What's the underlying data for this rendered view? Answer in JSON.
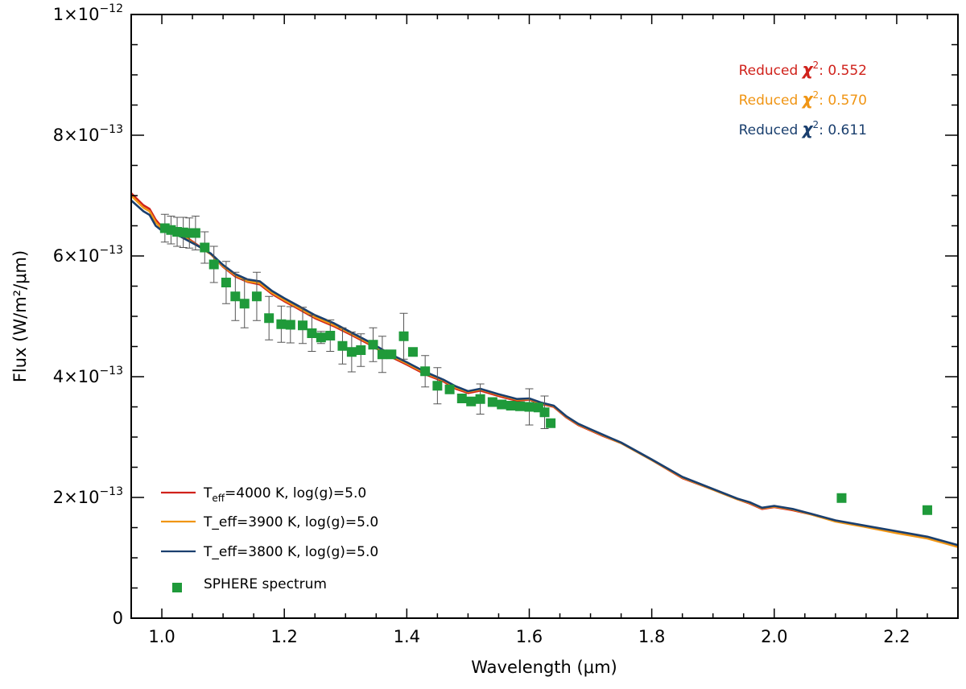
{
  "chart_data": {
    "type": "line",
    "title": "",
    "xlabel": "Wavelength (μm)",
    "ylabel": "Flux (W/m²/μm)",
    "xlim": [
      0.95,
      2.3
    ],
    "ylim": [
      0,
      1e-12
    ],
    "x_ticks": [
      1.0,
      1.2,
      1.4,
      1.6,
      1.8,
      2.0,
      2.2
    ],
    "x_tick_labels": [
      "1.0",
      "1.2",
      "1.4",
      "1.6",
      "1.8",
      "2.0",
      "2.2"
    ],
    "y_ticks": [
      0,
      2e-13,
      4e-13,
      6e-13,
      8e-13,
      1e-12
    ],
    "y_tick_labels": [
      {
        "mantissa": "0",
        "exponent": ""
      },
      {
        "mantissa": "2×10",
        "exponent": "−13"
      },
      {
        "mantissa": "4×10",
        "exponent": "−13"
      },
      {
        "mantissa": "6×10",
        "exponent": "−13"
      },
      {
        "mantissa": "8×10",
        "exponent": "−13"
      },
      {
        "mantissa": "1×10",
        "exponent": "−12"
      }
    ],
    "grid": false,
    "series": [
      {
        "name": "Teff=4000 K, log(g)=5.0",
        "legend_parts": {
          "prefix": "T",
          "sub": "eff",
          "suffix": "=4000 K, log(g)=5.0"
        },
        "color": "#d0221b",
        "x": [
          0.95,
          0.97,
          0.98,
          0.99,
          1.0,
          1.02,
          1.04,
          1.06,
          1.08,
          1.1,
          1.12,
          1.14,
          1.16,
          1.18,
          1.2,
          1.22,
          1.25,
          1.28,
          1.31,
          1.34,
          1.37,
          1.4,
          1.43,
          1.46,
          1.48,
          1.5,
          1.52,
          1.55,
          1.58,
          1.6,
          1.62,
          1.64,
          1.66,
          1.68,
          1.7,
          1.72,
          1.75,
          1.8,
          1.85,
          1.9,
          1.94,
          1.96,
          1.98,
          2.0,
          2.03,
          2.06,
          2.1,
          2.15,
          2.2,
          2.25,
          2.3
        ],
        "y": [
          7.04e-13,
          6.84e-13,
          6.78e-13,
          6.6e-13,
          6.48e-13,
          6.42e-13,
          6.31e-13,
          6.17e-13,
          6.03e-13,
          5.82e-13,
          5.66e-13,
          5.57e-13,
          5.53e-13,
          5.37e-13,
          5.25e-13,
          5.14e-13,
          4.97e-13,
          4.84e-13,
          4.69e-13,
          4.53e-13,
          4.35e-13,
          4.2e-13,
          4.04e-13,
          3.92e-13,
          3.8e-13,
          3.73e-13,
          3.77e-13,
          3.68e-13,
          3.6e-13,
          3.62e-13,
          3.55e-13,
          3.5e-13,
          3.33e-13,
          3.2e-13,
          3.11e-13,
          3.02e-13,
          2.9e-13,
          2.62e-13,
          2.32e-13,
          2.13e-13,
          1.97e-13,
          1.9e-13,
          1.81e-13,
          1.84e-13,
          1.79e-13,
          1.72e-13,
          1.61e-13,
          1.52e-13,
          1.43e-13,
          1.34e-13,
          1.19e-13
        ]
      },
      {
        "name": "T_eff=3900 K, log(g)=5.0",
        "legend_parts": {
          "prefix": "T_eff=3900 K, log(g)=5.0",
          "sub": "",
          "suffix": ""
        },
        "color": "#f09514",
        "x": [
          0.95,
          0.97,
          0.98,
          0.99,
          1.0,
          1.02,
          1.04,
          1.06,
          1.08,
          1.1,
          1.12,
          1.14,
          1.16,
          1.18,
          1.2,
          1.22,
          1.25,
          1.28,
          1.31,
          1.34,
          1.37,
          1.4,
          1.43,
          1.46,
          1.48,
          1.5,
          1.52,
          1.55,
          1.58,
          1.6,
          1.62,
          1.64,
          1.66,
          1.68,
          1.7,
          1.72,
          1.75,
          1.8,
          1.85,
          1.9,
          1.94,
          1.96,
          1.98,
          2.0,
          2.03,
          2.06,
          2.1,
          2.15,
          2.2,
          2.25,
          2.3
        ],
        "y": [
          7e-13,
          6.8e-13,
          6.74e-13,
          6.56e-13,
          6.45e-13,
          6.4e-13,
          6.29e-13,
          6.16e-13,
          6.03e-13,
          5.83e-13,
          5.68e-13,
          5.58e-13,
          5.55e-13,
          5.39e-13,
          5.27e-13,
          5.16e-13,
          4.99e-13,
          4.86e-13,
          4.71e-13,
          4.55e-13,
          4.37e-13,
          4.22e-13,
          4.06e-13,
          3.94e-13,
          3.82e-13,
          3.75e-13,
          3.79e-13,
          3.7e-13,
          3.62e-13,
          3.63e-13,
          3.56e-13,
          3.51e-13,
          3.34e-13,
          3.21e-13,
          3.12e-13,
          3.03e-13,
          2.9e-13,
          2.62e-13,
          2.33e-13,
          2.13e-13,
          1.97e-13,
          1.91e-13,
          1.82e-13,
          1.85e-13,
          1.8e-13,
          1.72e-13,
          1.6e-13,
          1.51e-13,
          1.41e-13,
          1.32e-13,
          1.18e-13
        ]
      },
      {
        "name": "T_eff=3800 K, log(g)=5.0",
        "legend_parts": {
          "prefix": "T_eff=3800 K, log(g)=5.0",
          "sub": "",
          "suffix": ""
        },
        "color": "#1a3f6e",
        "x": [
          0.95,
          0.97,
          0.98,
          0.99,
          1.0,
          1.02,
          1.04,
          1.06,
          1.08,
          1.1,
          1.12,
          1.14,
          1.16,
          1.18,
          1.2,
          1.22,
          1.25,
          1.28,
          1.31,
          1.34,
          1.37,
          1.4,
          1.43,
          1.46,
          1.48,
          1.5,
          1.52,
          1.55,
          1.58,
          1.6,
          1.62,
          1.64,
          1.66,
          1.68,
          1.7,
          1.72,
          1.75,
          1.8,
          1.85,
          1.9,
          1.94,
          1.96,
          1.98,
          2.0,
          2.03,
          2.06,
          2.1,
          2.15,
          2.2,
          2.25,
          2.3
        ],
        "y": [
          6.92e-13,
          6.74e-13,
          6.68e-13,
          6.5e-13,
          6.42e-13,
          6.38e-13,
          6.27e-13,
          6.16e-13,
          6.04e-13,
          5.85e-13,
          5.7e-13,
          5.61e-13,
          5.58e-13,
          5.42e-13,
          5.3e-13,
          5.19e-13,
          5.02e-13,
          4.89e-13,
          4.73e-13,
          4.57e-13,
          4.39e-13,
          4.24e-13,
          4.08e-13,
          3.95e-13,
          3.84e-13,
          3.76e-13,
          3.8e-13,
          3.71e-13,
          3.63e-13,
          3.64e-13,
          3.57e-13,
          3.52e-13,
          3.35e-13,
          3.22e-13,
          3.13e-13,
          3.04e-13,
          2.91e-13,
          2.63e-13,
          2.34e-13,
          2.14e-13,
          1.98e-13,
          1.92e-13,
          1.83e-13,
          1.86e-13,
          1.81e-13,
          1.73e-13,
          1.62e-13,
          1.53e-13,
          1.44e-13,
          1.35e-13,
          1.21e-13
        ]
      }
    ],
    "points": {
      "name": "SPHERE spectrum",
      "color": "#1f9a3a",
      "x": [
        1.005,
        1.015,
        1.025,
        1.035,
        1.045,
        1.055,
        1.07,
        1.085,
        1.105,
        1.12,
        1.135,
        1.155,
        1.175,
        1.195,
        1.21,
        1.23,
        1.245,
        1.26,
        1.275,
        1.295,
        1.31,
        1.325,
        1.345,
        1.36,
        1.375,
        1.395,
        1.41,
        1.43,
        1.45,
        1.47,
        1.49,
        1.505,
        1.52,
        1.54,
        1.555,
        1.57,
        1.585,
        1.6,
        1.615,
        1.625,
        1.635,
        2.11,
        2.25
      ],
      "y": [
        6.46e-13,
        6.43e-13,
        6.4e-13,
        6.39e-13,
        6.38e-13,
        6.38e-13,
        6.14e-13,
        5.86e-13,
        5.56e-13,
        5.33e-13,
        5.21e-13,
        5.33e-13,
        4.97e-13,
        4.87e-13,
        4.86e-13,
        4.85e-13,
        4.72e-13,
        4.65e-13,
        4.68e-13,
        4.51e-13,
        4.41e-13,
        4.44e-13,
        4.53e-13,
        4.37e-13,
        4.37e-13,
        4.67e-13,
        4.41e-13,
        4.09e-13,
        3.85e-13,
        3.79e-13,
        3.64e-13,
        3.59e-13,
        3.63e-13,
        3.58e-13,
        3.54e-13,
        3.52e-13,
        3.51e-13,
        3.5e-13,
        3.49e-13,
        3.41e-13,
        3.23e-13,
        1.99e-13,
        1.79e-13
      ],
      "err": [
        2.3e-14,
        2.3e-14,
        2.4e-14,
        2.5e-14,
        2.5e-14,
        2.8e-14,
        2.6e-14,
        3e-14,
        3.5e-14,
        4e-14,
        4e-14,
        4e-14,
        3.6e-14,
        3e-14,
        3e-14,
        3e-14,
        3e-14,
        1e-14,
        2.6e-14,
        3e-14,
        3.3e-14,
        2.7e-14,
        2.8e-14,
        3e-14,
        5e-15,
        3.8e-14,
        6e-15,
        2.6e-14,
        3e-14,
        5e-15,
        5e-15,
        4e-15,
        2.5e-14,
        5e-15,
        5e-15,
        5e-15,
        5e-15,
        3e-14,
        5e-15,
        2.7e-14,
        4e-15,
        4e-15,
        4e-15
      ]
    },
    "legend_position": "bottom-left",
    "annotations": [
      {
        "prefix": "Reduced ",
        "chi": "χ",
        "sup": "2",
        "suffix": ": 0.552",
        "color": "#d0221b"
      },
      {
        "prefix": "Reduced ",
        "chi": "χ",
        "sup": "2",
        "suffix": ": 0.570",
        "color": "#f09514"
      },
      {
        "prefix": "Reduced ",
        "chi": "χ",
        "sup": "2",
        "suffix": ": 0.611",
        "color": "#1a3f6e"
      }
    ],
    "annotation_position": "top-right"
  }
}
